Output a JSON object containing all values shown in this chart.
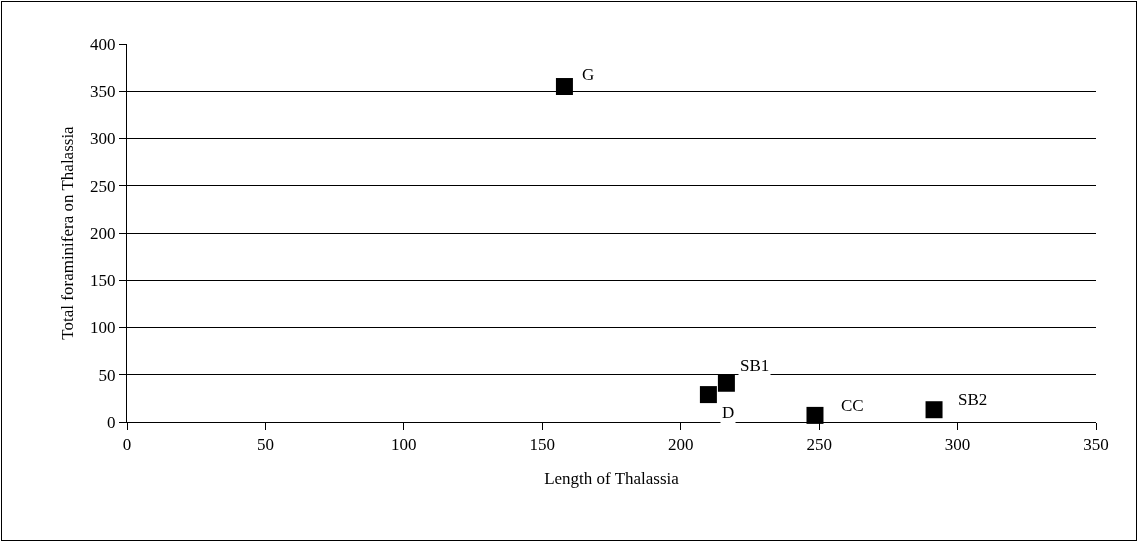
{
  "chart_data": {
    "type": "scatter",
    "xlabel": "Length of Thalassia",
    "ylabel": "Total foraminifera on Thalassia",
    "x": [
      158,
      210,
      216.5,
      248.5,
      291.5
    ],
    "values": [
      355,
      29,
      41,
      7,
      13
    ],
    "color": "#000000",
    "marker": "square",
    "annotations": [
      {
        "text": "G",
        "x": 158,
        "y": 355
      },
      {
        "text": "D",
        "x": 210,
        "y": 29
      },
      {
        "text": "SB1",
        "x": 216.5,
        "y": 41
      },
      {
        "text": "CC",
        "x": 248.5,
        "y": 7
      },
      {
        "text": "SB2",
        "x": 291.5,
        "y": 13
      }
    ],
    "xlim": [
      0,
      350
    ],
    "xticks": [
      0,
      50,
      100,
      150,
      200,
      250,
      300,
      350
    ],
    "ylim": [
      0,
      400
    ],
    "yticks": [
      0,
      50,
      100,
      150,
      200,
      250,
      300,
      350,
      400
    ],
    "grid": "y",
    "legend": false
  }
}
